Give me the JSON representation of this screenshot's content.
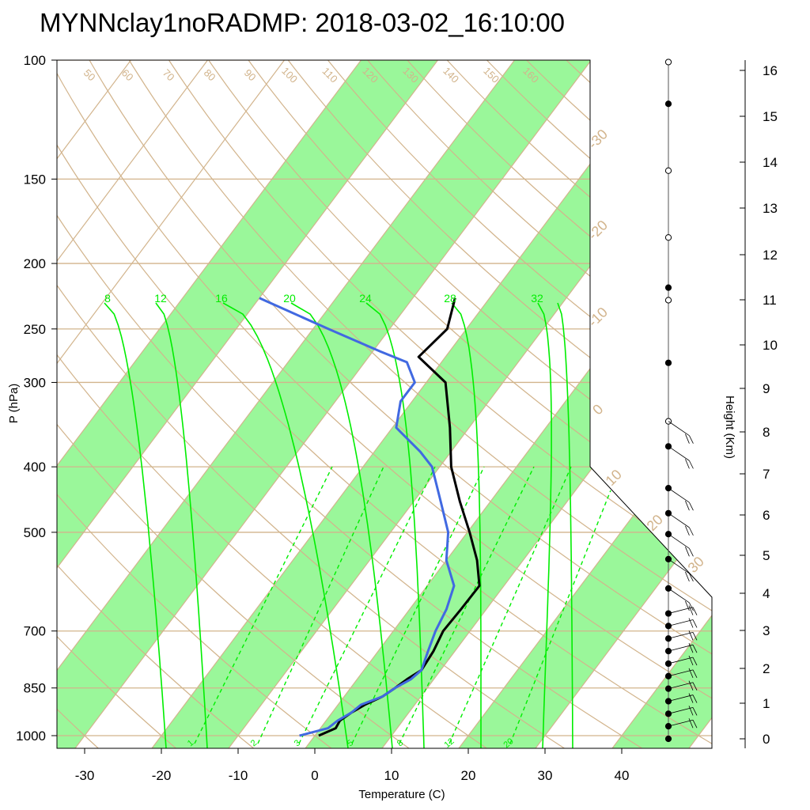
{
  "title": "MYNNclay1noRADMP: 2018-03-02_16:10:00",
  "colors": {
    "temperature": "#000000",
    "dewpoint": "#4169e1",
    "band": "#9af79a",
    "isobar": "#d2b48c",
    "mixing": "#00ee00",
    "wind": "#000000"
  },
  "chart_data": {
    "type": "line",
    "xlabel": "Temperature (C)",
    "ylabel": "P (hPa)",
    "y2label": "Height (Km)",
    "xlim": [
      -35,
      52
    ],
    "ylim": [
      1050,
      100
    ],
    "x_ticks": [
      "-30",
      "-20",
      "-10",
      "0",
      "10",
      "20",
      "30",
      "40"
    ],
    "x_tick_values": [
      -30,
      -20,
      -10,
      0,
      10,
      20,
      30,
      40
    ],
    "p_ticks": [
      "100",
      "150",
      "200",
      "250",
      "300",
      "400",
      "500",
      "700",
      "850",
      "1000"
    ],
    "p_tick_values": [
      100,
      150,
      200,
      250,
      300,
      400,
      500,
      700,
      850,
      1000
    ],
    "height_ticks": [
      "0",
      "1",
      "2",
      "3",
      "4",
      "5",
      "6",
      "7",
      "8",
      "9",
      "10",
      "11",
      "12",
      "13",
      "14",
      "15",
      "16"
    ],
    "isotherm_labels": [
      "-30",
      "-20",
      "-10",
      "0",
      "10",
      "20",
      "30"
    ],
    "isotherm_label_values": [
      -30,
      -20,
      -10,
      0,
      10,
      20,
      30
    ],
    "dry_adiabat_labels": [
      "50",
      "60",
      "70",
      "80",
      "90",
      "100",
      "110",
      "120",
      "130",
      "140",
      "150",
      "160"
    ],
    "mixing_ratio_labels_top": [
      "8",
      "12",
      "16",
      "20",
      "24",
      "28",
      "32"
    ],
    "mixing_ratio_labels_bottom": [
      "1",
      "2",
      "3",
      "5",
      "8",
      "12",
      "20"
    ],
    "series": [
      {
        "name": "Temperature",
        "p": [
          1000,
          975,
          950,
          925,
          900,
          875,
          850,
          825,
          800,
          750,
          700,
          650,
          600,
          550,
          500,
          450,
          400,
          350,
          300,
          275,
          250,
          225
        ],
        "t": [
          0.5,
          2,
          1.8,
          2.5,
          3.5,
          5,
          5.8,
          6.5,
          7.5,
          7.2,
          6.5,
          6.7,
          6.8,
          4,
          0.3,
          -4,
          -8.5,
          -12.5,
          -17.5,
          -23.5,
          -22.5,
          -24.5
        ]
      },
      {
        "name": "Dewpoint",
        "p": [
          1000,
          975,
          950,
          925,
          900,
          875,
          850,
          825,
          800,
          750,
          700,
          650,
          600,
          550,
          500,
          450,
          400,
          380,
          350,
          320,
          300,
          280,
          270,
          250,
          225
        ],
        "t": [
          -2,
          1,
          1.5,
          2.5,
          3,
          5,
          5.8,
          7,
          7.5,
          6.5,
          5.5,
          4.8,
          3.5,
          0,
          -2.5,
          -6.5,
          -11,
          -14,
          -19.5,
          -21.5,
          -21.5,
          -24.5,
          -29,
          -38,
          -50
        ]
      }
    ],
    "wind_profile_heights_km": [
      0,
      0.3,
      0.6,
      0.9,
      1.2,
      1.5,
      1.8,
      2.1,
      2.4,
      2.7,
      3.0,
      3.6,
      4.3,
      4.9,
      5.4,
      6.0,
      7.0,
      7.6,
      9.0,
      10.5,
      10.8,
      12.0,
      13.6,
      15.2,
      16.2
    ]
  }
}
